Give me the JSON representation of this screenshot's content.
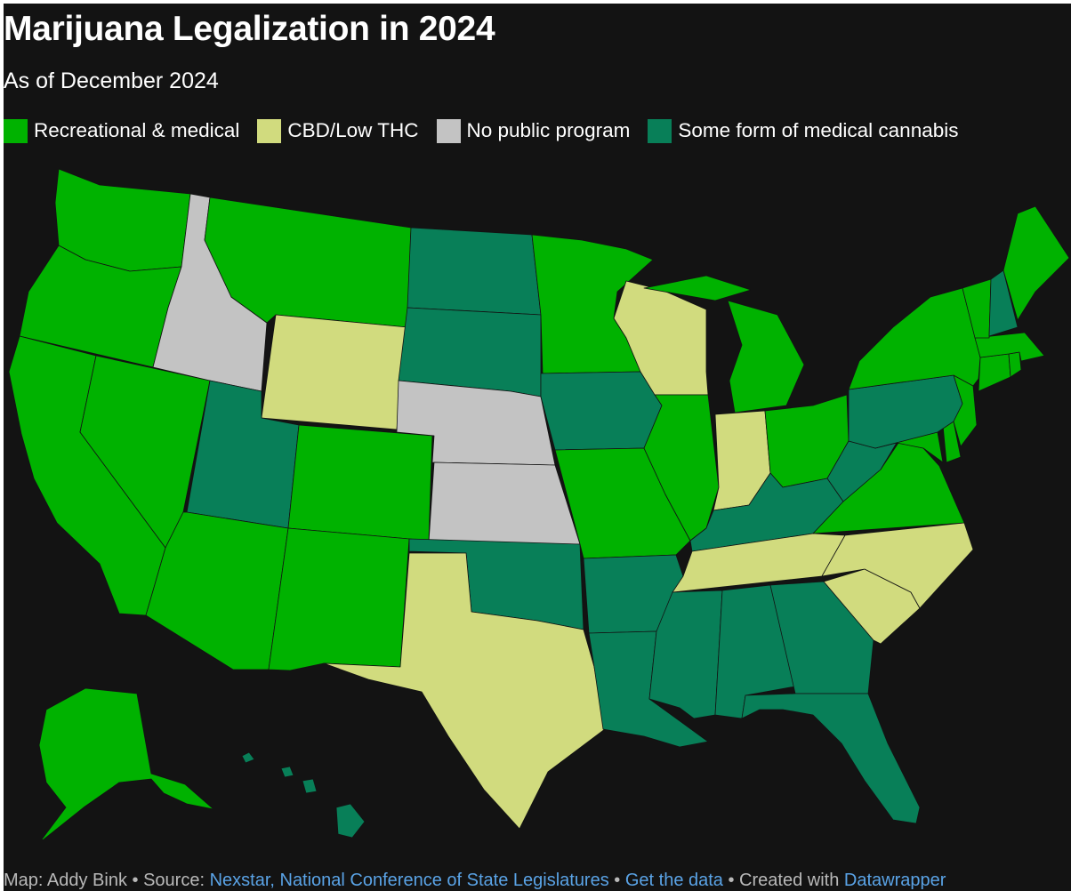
{
  "title": "Marijuana Legalization in 2024",
  "subtitle": "As of December 2024",
  "legend": [
    {
      "label": "Recreational & medical",
      "color": "#00b200"
    },
    {
      "label": "CBD/Low THC",
      "color": "#d1db7e"
    },
    {
      "label": "No public program",
      "color": "#c3c3c3"
    },
    {
      "label": "Some form of medical cannabis",
      "color": "#087f58"
    }
  ],
  "footer": {
    "map_credit": "Map: Addy Bink",
    "sep1": " • ",
    "source_label": "Source: ",
    "source_link": "Nexstar, National Conference of State Legislatures",
    "sep2": " • ",
    "data_link": "Get the data",
    "sep3": " • ",
    "created_label": "Created with ",
    "created_link": "Datawrapper"
  },
  "map_data": {
    "categories": {
      "rec": "Recreational & medical",
      "cbd": "CBD/Low THC",
      "none": "No public program",
      "med": "Some form of medical cannabis"
    },
    "states": [
      {
        "state": "Washington",
        "category": "rec"
      },
      {
        "state": "Oregon",
        "category": "rec"
      },
      {
        "state": "California",
        "category": "rec"
      },
      {
        "state": "Nevada",
        "category": "rec"
      },
      {
        "state": "Idaho",
        "category": "none"
      },
      {
        "state": "Montana",
        "category": "rec"
      },
      {
        "state": "Wyoming",
        "category": "cbd"
      },
      {
        "state": "Utah",
        "category": "med"
      },
      {
        "state": "Arizona",
        "category": "rec"
      },
      {
        "state": "Colorado",
        "category": "rec"
      },
      {
        "state": "New Mexico",
        "category": "rec"
      },
      {
        "state": "North Dakota",
        "category": "med"
      },
      {
        "state": "South Dakota",
        "category": "med"
      },
      {
        "state": "Nebraska",
        "category": "none"
      },
      {
        "state": "Kansas",
        "category": "none"
      },
      {
        "state": "Oklahoma",
        "category": "med"
      },
      {
        "state": "Texas",
        "category": "cbd"
      },
      {
        "state": "Minnesota",
        "category": "rec"
      },
      {
        "state": "Iowa",
        "category": "med"
      },
      {
        "state": "Missouri",
        "category": "rec"
      },
      {
        "state": "Arkansas",
        "category": "med"
      },
      {
        "state": "Louisiana",
        "category": "med"
      },
      {
        "state": "Wisconsin",
        "category": "cbd"
      },
      {
        "state": "Illinois",
        "category": "rec"
      },
      {
        "state": "Michigan",
        "category": "rec"
      },
      {
        "state": "Indiana",
        "category": "cbd"
      },
      {
        "state": "Ohio",
        "category": "rec"
      },
      {
        "state": "Kentucky",
        "category": "med"
      },
      {
        "state": "Tennessee",
        "category": "cbd"
      },
      {
        "state": "Mississippi",
        "category": "med"
      },
      {
        "state": "Alabama",
        "category": "med"
      },
      {
        "state": "Georgia",
        "category": "med"
      },
      {
        "state": "Florida",
        "category": "med"
      },
      {
        "state": "South Carolina",
        "category": "cbd"
      },
      {
        "state": "North Carolina",
        "category": "cbd"
      },
      {
        "state": "Virginia",
        "category": "rec"
      },
      {
        "state": "West Virginia",
        "category": "med"
      },
      {
        "state": "Maryland",
        "category": "rec"
      },
      {
        "state": "Delaware",
        "category": "rec"
      },
      {
        "state": "Pennsylvania",
        "category": "med"
      },
      {
        "state": "New Jersey",
        "category": "rec"
      },
      {
        "state": "New York",
        "category": "rec"
      },
      {
        "state": "Connecticut",
        "category": "rec"
      },
      {
        "state": "Rhode Island",
        "category": "rec"
      },
      {
        "state": "Massachusetts",
        "category": "rec"
      },
      {
        "state": "Vermont",
        "category": "rec"
      },
      {
        "state": "New Hampshire",
        "category": "med"
      },
      {
        "state": "Maine",
        "category": "rec"
      },
      {
        "state": "Alaska",
        "category": "rec"
      },
      {
        "state": "Hawaii",
        "category": "med"
      }
    ]
  }
}
